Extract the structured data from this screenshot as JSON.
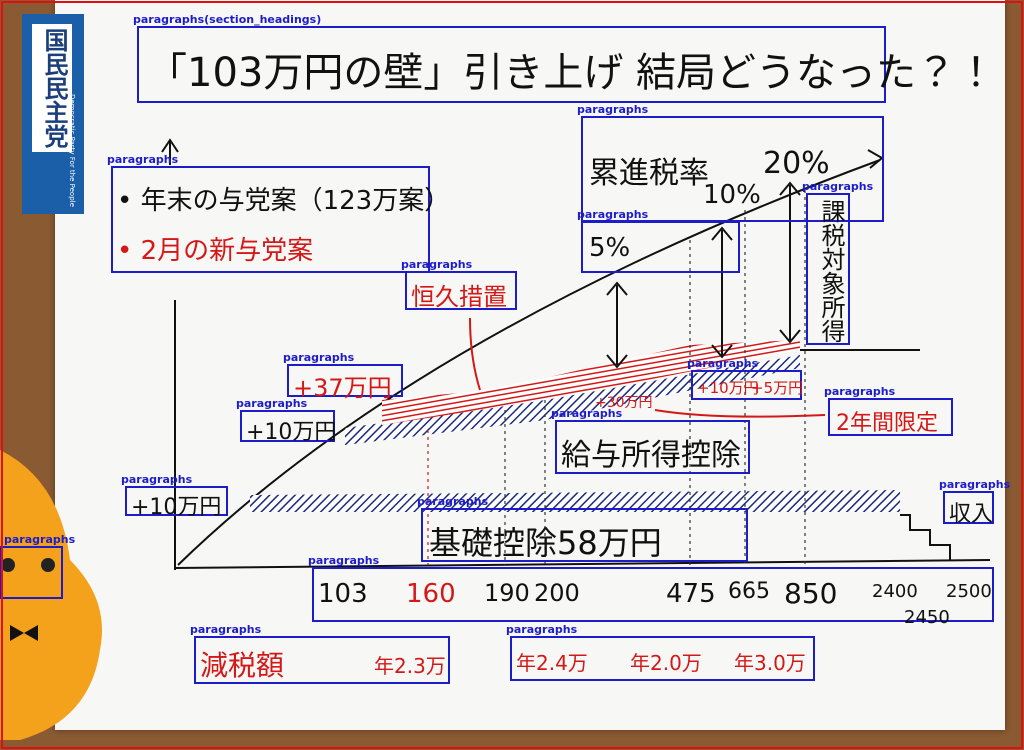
{
  "banner": {
    "title": "国民民主党",
    "subtitle": "Democratic Party For the People"
  },
  "regions": [
    {
      "label": "paragraphs(section_headings)",
      "text": "「103万円の壁」引き上げ 結局どうなった？！"
    },
    {
      "label": "paragraphs",
      "lines": [
        "累進税率",
        "10%",
        "20%"
      ]
    },
    {
      "label": "paragraphs",
      "text": "5%"
    },
    {
      "label": "paragraphs",
      "lines": [
        "• 年末の与党案（123万案）",
        "• 2月の新与党案"
      ]
    },
    {
      "label": "paragraphs",
      "text": "恒久措置"
    },
    {
      "label": "paragraphs",
      "text": "課税対象所得"
    },
    {
      "label": "paragraphs",
      "text": "+37万円"
    },
    {
      "label": "paragraphs",
      "lines": [
        "+10万円",
        "+5万円"
      ]
    },
    {
      "label": "paragraphs",
      "text": "+10万円"
    },
    {
      "label": "paragraphs",
      "text": "給与所得控除"
    },
    {
      "label": "paragraphs",
      "text": "2年間限定"
    },
    {
      "label": "paragraphs",
      "text": "収入"
    },
    {
      "label": "paragraphs",
      "text": "+10万円"
    },
    {
      "label": "paragraphs",
      "text": "基礎控除58万円"
    },
    {
      "label": "paragraphs"
    },
    {
      "label": "paragraphs",
      "lines": [
        "103",
        "160",
        "190",
        "200",
        "475",
        "665",
        "850",
        "2400",
        "2450",
        "2500"
      ]
    },
    {
      "label": "paragraphs",
      "lines": [
        "減税額",
        "年2.3万"
      ]
    },
    {
      "label": "paragraphs",
      "lines": [
        "年2.4万",
        "年2.0万",
        "年3.0万"
      ]
    }
  ],
  "notes": [
    "+30万円"
  ]
}
